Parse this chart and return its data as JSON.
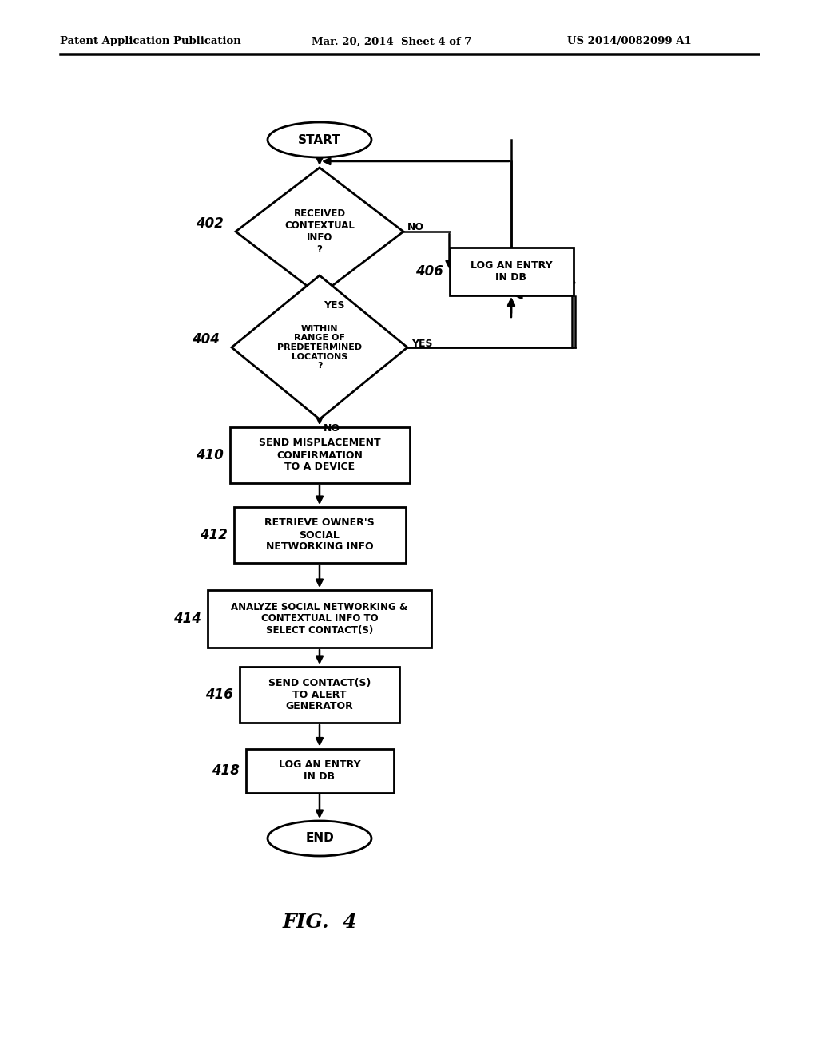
{
  "bg_color": "#ffffff",
  "header_left": "Patent Application Publication",
  "header_mid": "Mar. 20, 2014  Sheet 4 of 7",
  "header_right": "US 2014/0082099 A1",
  "figure_label": "FIG.  4"
}
